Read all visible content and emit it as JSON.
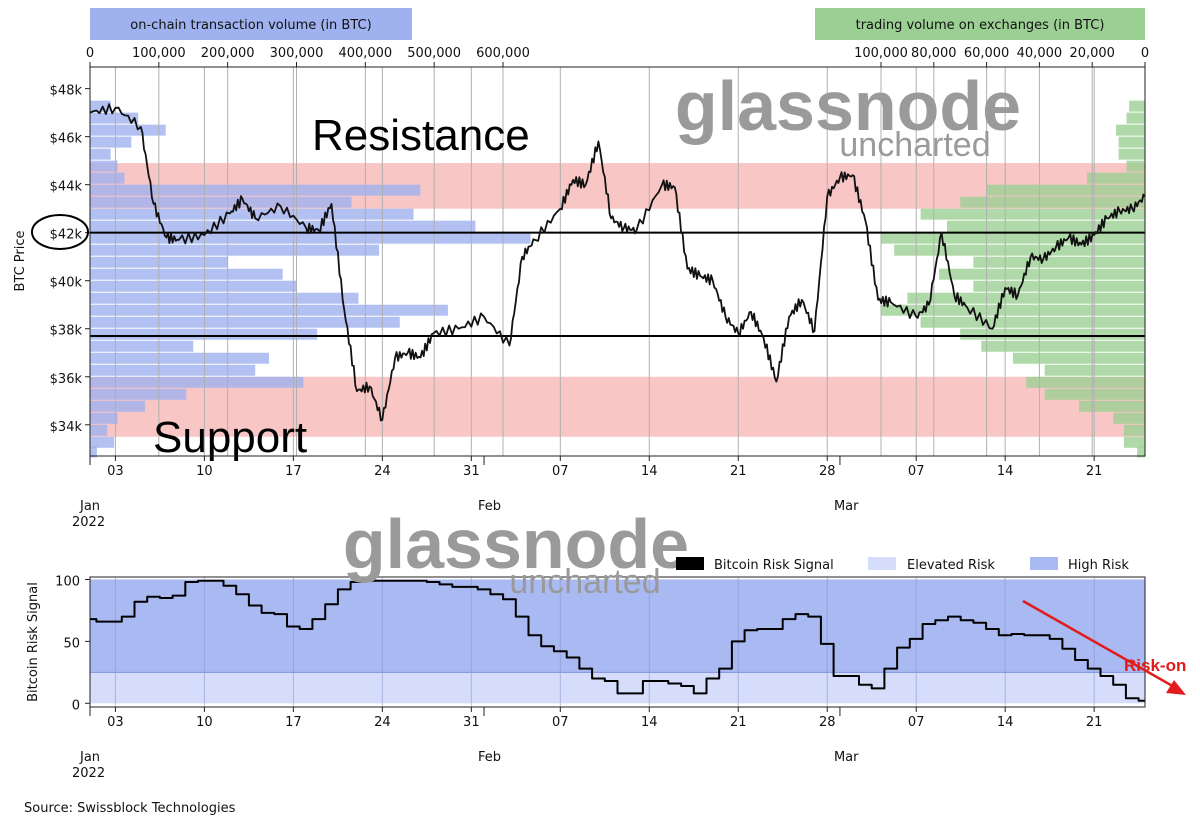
{
  "watermark": {
    "brand": "glassnode",
    "sub": "uncharted"
  },
  "source": "Source: Swissblock Technologies",
  "colors": {
    "onchain": "#9fb2ef",
    "exchange": "#9ccf94",
    "zone": "#f7b3b3",
    "high_risk": "#a9b9f1",
    "elevated_risk": "#d6ddfa",
    "price": "#111111",
    "risk_on": "#e21b1b"
  },
  "chart_data": [
    {
      "type": "line",
      "ylabel": "BTC Price",
      "ylim": [
        32700,
        48900
      ],
      "yticks": [
        "$34k",
        "$36k",
        "$38k",
        "$40k",
        "$42k",
        "$44k",
        "$46k",
        "$48k"
      ],
      "ytick_values": [
        34000,
        36000,
        38000,
        40000,
        42000,
        44000,
        46000,
        48000
      ],
      "highlighted_ytick": "$42k",
      "x_dates": [
        "2022-01-01",
        "2022-03-25"
      ],
      "xticks": [
        "03",
        "10",
        "17",
        "24",
        "31",
        "07",
        "14",
        "21",
        "28",
        "07",
        "14",
        "21"
      ],
      "xtick_dates": [
        "2022-01-03",
        "2022-01-10",
        "2022-01-17",
        "2022-01-24",
        "2022-01-31",
        "2022-02-07",
        "2022-02-14",
        "2022-02-21",
        "2022-02-28",
        "2022-03-07",
        "2022-03-14",
        "2022-03-21"
      ],
      "month_labels": [
        {
          "label": "Jan",
          "year": "2022",
          "date": "2022-01-01"
        },
        {
          "label": "Feb",
          "year": "",
          "date": "2022-02-01"
        },
        {
          "label": "Mar",
          "year": "",
          "date": "2022-03-01"
        }
      ],
      "annotations": {
        "resistance": "Resistance",
        "support": "Support"
      },
      "resistance_zone": [
        43000,
        44900
      ],
      "support_zone": [
        33500,
        36000
      ],
      "horizontal_lines": [
        42000,
        37700
      ],
      "top_left_axis": {
        "label": "on-chain transaction volume (in BTC)",
        "ticks": [
          "0",
          "100,000",
          "200,000",
          "300,000",
          "400,000",
          "500,000",
          "600,000"
        ],
        "tick_values": [
          0,
          100000,
          200000,
          300000,
          400000,
          500000,
          600000
        ]
      },
      "top_right_axis": {
        "label": "trading volume on exchanges (in BTC)",
        "ticks": [
          "100,000",
          "80,000",
          "60,000",
          "40,000",
          "20,000",
          "0"
        ],
        "tick_values": [
          100000,
          80000,
          60000,
          40000,
          20000,
          0
        ]
      },
      "onchain_profile": [
        {
          "y": 33100,
          "v": 10000
        },
        {
          "y": 33500,
          "v": 35000
        },
        {
          "y": 34000,
          "v": 25000
        },
        {
          "y": 34500,
          "v": 40000
        },
        {
          "y": 35000,
          "v": 80000
        },
        {
          "y": 35500,
          "v": 140000
        },
        {
          "y": 36000,
          "v": 310000
        },
        {
          "y": 36500,
          "v": 240000
        },
        {
          "y": 37000,
          "v": 260000
        },
        {
          "y": 37500,
          "v": 150000
        },
        {
          "y": 38000,
          "v": 330000
        },
        {
          "y": 38500,
          "v": 450000
        },
        {
          "y": 39000,
          "v": 520000
        },
        {
          "y": 39500,
          "v": 390000
        },
        {
          "y": 40000,
          "v": 300000
        },
        {
          "y": 40500,
          "v": 280000
        },
        {
          "y": 41000,
          "v": 200000
        },
        {
          "y": 41500,
          "v": 420000
        },
        {
          "y": 42000,
          "v": 640000
        },
        {
          "y": 42500,
          "v": 560000
        },
        {
          "y": 43000,
          "v": 470000
        },
        {
          "y": 43500,
          "v": 380000
        },
        {
          "y": 44000,
          "v": 480000
        },
        {
          "y": 44500,
          "v": 50000
        },
        {
          "y": 45000,
          "v": 40000
        },
        {
          "y": 45500,
          "v": 30000
        },
        {
          "y": 46000,
          "v": 60000
        },
        {
          "y": 46500,
          "v": 110000
        },
        {
          "y": 47000,
          "v": 70000
        },
        {
          "y": 47500,
          "v": 30000
        }
      ],
      "exchange_profile": [
        {
          "y": 33100,
          "v": 3000
        },
        {
          "y": 33500,
          "v": 8000
        },
        {
          "y": 34000,
          "v": 8000
        },
        {
          "y": 34500,
          "v": 12000
        },
        {
          "y": 35000,
          "v": 25000
        },
        {
          "y": 35500,
          "v": 38000
        },
        {
          "y": 36000,
          "v": 45000
        },
        {
          "y": 36500,
          "v": 38000
        },
        {
          "y": 37000,
          "v": 50000
        },
        {
          "y": 37500,
          "v": 62000
        },
        {
          "y": 38000,
          "v": 70000
        },
        {
          "y": 38500,
          "v": 85000
        },
        {
          "y": 39000,
          "v": 100000
        },
        {
          "y": 39500,
          "v": 90000
        },
        {
          "y": 40000,
          "v": 65000
        },
        {
          "y": 40500,
          "v": 78000
        },
        {
          "y": 41000,
          "v": 65000
        },
        {
          "y": 41500,
          "v": 95000
        },
        {
          "y": 42000,
          "v": 100000
        },
        {
          "y": 42500,
          "v": 75000
        },
        {
          "y": 43000,
          "v": 85000
        },
        {
          "y": 43500,
          "v": 70000
        },
        {
          "y": 44000,
          "v": 60000
        },
        {
          "y": 44500,
          "v": 22000
        },
        {
          "y": 45000,
          "v": 7000
        },
        {
          "y": 45500,
          "v": 10000
        },
        {
          "y": 46000,
          "v": 10000
        },
        {
          "y": 46500,
          "v": 11000
        },
        {
          "y": 47000,
          "v": 7000
        },
        {
          "y": 47500,
          "v": 6000
        }
      ],
      "series": [
        {
          "dates": [
            "2022-01-01",
            "2022-01-03",
            "2022-01-05",
            "2022-01-06",
            "2022-01-07",
            "2022-01-08",
            "2022-01-10",
            "2022-01-12",
            "2022-01-13",
            "2022-01-14",
            "2022-01-16",
            "2022-01-18",
            "2022-01-19",
            "2022-01-20",
            "2022-01-21",
            "2022-01-22",
            "2022-01-23",
            "2022-01-24",
            "2022-01-25",
            "2022-01-26",
            "2022-01-27",
            "2022-01-28",
            "2022-01-30",
            "2022-02-01",
            "2022-02-03",
            "2022-02-04",
            "2022-02-05",
            "2022-02-07",
            "2022-02-08",
            "2022-02-09",
            "2022-02-10",
            "2022-02-11",
            "2022-02-12",
            "2022-02-13",
            "2022-02-15",
            "2022-02-16",
            "2022-02-17",
            "2022-02-18",
            "2022-02-19",
            "2022-02-20",
            "2022-02-21",
            "2022-02-22",
            "2022-02-23",
            "2022-02-24",
            "2022-02-25",
            "2022-02-26",
            "2022-02-27",
            "2022-02-28",
            "2022-03-01",
            "2022-03-02",
            "2022-03-03",
            "2022-03-04",
            "2022-03-05",
            "2022-03-07",
            "2022-03-08",
            "2022-03-09",
            "2022-03-10",
            "2022-03-11",
            "2022-03-13",
            "2022-03-14",
            "2022-03-15",
            "2022-03-16",
            "2022-03-17",
            "2022-03-18",
            "2022-03-19",
            "2022-03-20",
            "2022-03-21",
            "2022-03-22",
            "2022-03-23",
            "2022-03-24",
            "2022-03-25"
          ],
          "values": [
            47000,
            47200,
            46400,
            43200,
            41800,
            41700,
            41900,
            42800,
            43400,
            42600,
            43100,
            42200,
            42100,
            43200,
            38800,
            35400,
            35600,
            34200,
            36800,
            37000,
            36800,
            37800,
            38000,
            38500,
            37300,
            41000,
            41700,
            43000,
            44200,
            44000,
            45800,
            42600,
            42200,
            42100,
            44000,
            43900,
            40500,
            40200,
            40000,
            38500,
            37800,
            38700,
            37600,
            35800,
            38500,
            39200,
            37900,
            43500,
            44300,
            44400,
            42500,
            39200,
            39100,
            38500,
            39000,
            42000,
            39400,
            38900,
            38000,
            39700,
            39400,
            41000,
            40900,
            41400,
            41800,
            41500,
            41900,
            42600,
            42900,
            43000,
            43500
          ]
        }
      ]
    },
    {
      "type": "area",
      "ylabel": "Bitcoin Risk Signal",
      "ylim": [
        -3,
        102
      ],
      "yticks": [
        "0",
        "50",
        "100"
      ],
      "ytick_values": [
        0,
        50,
        100
      ],
      "xticks": [
        "03",
        "10",
        "17",
        "24",
        "31",
        "07",
        "14",
        "21",
        "28",
        "07",
        "14",
        "21"
      ],
      "legend": [
        "Bitcoin Risk Signal",
        "Elevated Risk",
        "High Risk"
      ],
      "legend_position": "top-right",
      "elevated_risk_band": [
        0,
        25
      ],
      "high_risk_band": [
        25,
        100
      ],
      "annotation": "Risk-on",
      "series": [
        {
          "name": "Bitcoin Risk Signal",
          "dates": [
            "2022-01-01",
            "2022-01-02",
            "2022-01-03",
            "2022-01-04",
            "2022-01-05",
            "2022-01-06",
            "2022-01-07",
            "2022-01-08",
            "2022-01-09",
            "2022-01-10",
            "2022-01-11",
            "2022-01-12",
            "2022-01-13",
            "2022-01-14",
            "2022-01-15",
            "2022-01-16",
            "2022-01-17",
            "2022-01-18",
            "2022-01-19",
            "2022-01-20",
            "2022-01-21",
            "2022-01-22",
            "2022-01-23",
            "2022-01-24",
            "2022-01-25",
            "2022-01-26",
            "2022-01-27",
            "2022-01-28",
            "2022-01-29",
            "2022-01-30",
            "2022-01-31",
            "2022-02-01",
            "2022-02-02",
            "2022-02-03",
            "2022-02-04",
            "2022-02-05",
            "2022-02-06",
            "2022-02-07",
            "2022-02-08",
            "2022-02-09",
            "2022-02-10",
            "2022-02-11",
            "2022-02-12",
            "2022-02-13",
            "2022-02-14",
            "2022-02-15",
            "2022-02-16",
            "2022-02-17",
            "2022-02-18",
            "2022-02-19",
            "2022-02-20",
            "2022-02-21",
            "2022-02-22",
            "2022-02-23",
            "2022-02-24",
            "2022-02-25",
            "2022-02-26",
            "2022-02-27",
            "2022-02-28",
            "2022-03-01",
            "2022-03-02",
            "2022-03-03",
            "2022-03-04",
            "2022-03-05",
            "2022-03-06",
            "2022-03-07",
            "2022-03-08",
            "2022-03-09",
            "2022-03-10",
            "2022-03-11",
            "2022-03-12",
            "2022-03-13",
            "2022-03-14",
            "2022-03-15",
            "2022-03-16",
            "2022-03-17",
            "2022-03-18",
            "2022-03-19",
            "2022-03-20",
            "2022-03-21",
            "2022-03-22",
            "2022-03-23",
            "2022-03-24",
            "2022-03-25"
          ],
          "values": [
            68,
            66,
            66,
            70,
            82,
            86,
            85,
            87,
            98,
            99,
            99,
            95,
            88,
            79,
            73,
            72,
            62,
            60,
            68,
            80,
            92,
            98,
            99,
            99,
            99,
            99,
            99,
            98,
            96,
            94,
            94,
            92,
            88,
            84,
            70,
            55,
            46,
            42,
            37,
            28,
            20,
            18,
            8,
            8,
            18,
            18,
            16,
            14,
            8,
            20,
            28,
            50,
            59,
            60,
            60,
            68,
            72,
            70,
            48,
            22,
            22,
            15,
            12,
            28,
            45,
            52,
            64,
            67,
            70,
            67,
            65,
            60,
            55,
            56,
            55,
            55,
            52,
            44,
            35,
            28,
            22,
            15,
            4,
            2
          ]
        }
      ]
    }
  ]
}
